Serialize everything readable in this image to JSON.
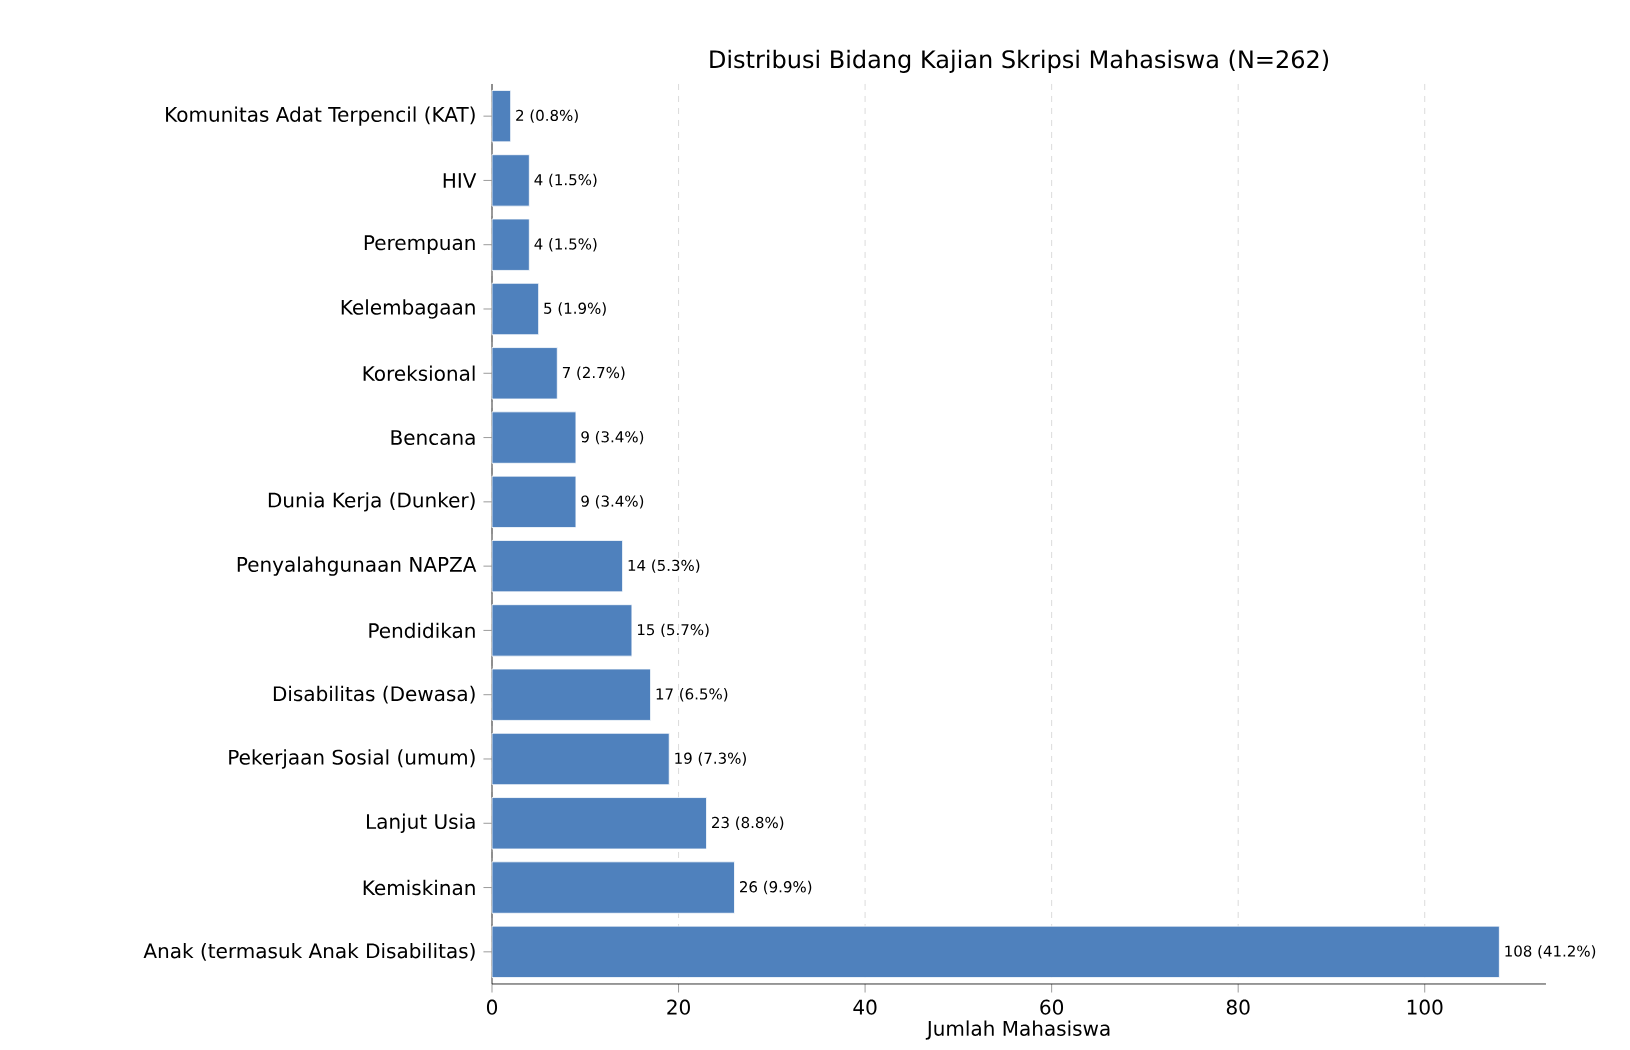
{
  "chart_data": {
    "type": "bar",
    "orientation": "horizontal",
    "title": "Distribusi Bidang Kajian Skripsi Mahasiswa (N=262)",
    "xlabel": "Jumlah Mahasiswa",
    "categories": [
      "Komunitas Adat Terpencil (KAT)",
      "HIV",
      "Perempuan",
      "Kelembagaan",
      "Koreksional",
      "Bencana",
      "Dunia Kerja (Dunker)",
      "Penyalahgunaan NAPZA",
      "Pendidikan",
      "Disabilitas (Dewasa)",
      "Pekerjaan Sosial (umum)",
      "Lanjut Usia",
      "Kemiskinan",
      "Anak (termasuk Anak Disabilitas)"
    ],
    "values": [
      2,
      4,
      4,
      5,
      7,
      9,
      9,
      14,
      15,
      17,
      19,
      23,
      26,
      108
    ],
    "value_labels": [
      "2 (0.8%)",
      "4 (1.5%)",
      "4 (1.5%)",
      "5 (1.9%)",
      "7 (2.7%)",
      "9 (3.4%)",
      "9 (3.4%)",
      "14 (5.3%)",
      "15 (5.7%)",
      "17 (6.5%)",
      "19 (7.3%)",
      "23 (8.8%)",
      "26 (9.9%)",
      "108 (41.2%)"
    ],
    "color": "#4f81bd",
    "xlim": [
      0,
      113
    ],
    "xticks": [
      0,
      20,
      40,
      60,
      80,
      100
    ],
    "grid": "x"
  }
}
